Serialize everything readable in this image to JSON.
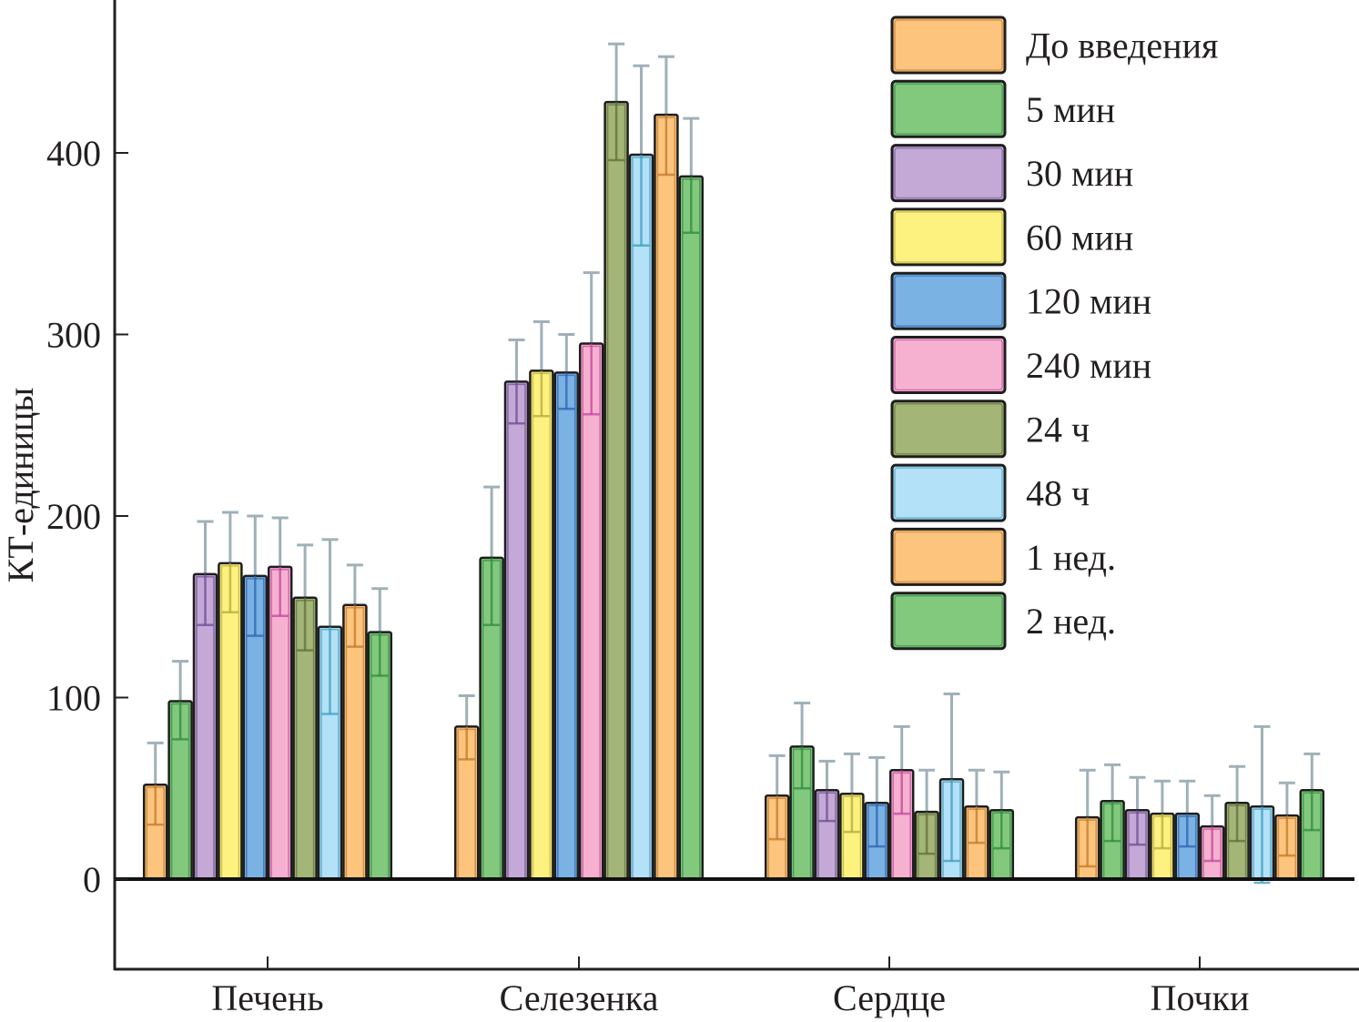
{
  "chart_data": {
    "type": "bar",
    "title": "",
    "xlabel": "",
    "ylabel": "КТ-единицы",
    "ylim": [
      -50,
      480
    ],
    "yticks": [
      0,
      100,
      200,
      300,
      400
    ],
    "grid": false,
    "legend_position": "top-right",
    "categories": [
      "Печень",
      "Селезенка",
      "Сердце",
      "Почки"
    ],
    "series": [
      {
        "name": "До введения",
        "color": "#fdc47e",
        "edge": "#c07a2a",
        "values": [
          52,
          84,
          46,
          34
        ],
        "err_upper": [
          75,
          101,
          68,
          60
        ],
        "err_lower": [
          30,
          66,
          22,
          7
        ]
      },
      {
        "name": "5 мин",
        "color": "#83c97d",
        "edge": "#2e8b3e",
        "values": [
          98,
          177,
          73,
          43
        ],
        "err_upper": [
          120,
          216,
          97,
          63
        ],
        "err_lower": [
          77,
          140,
          50,
          21
        ]
      },
      {
        "name": "30 мин",
        "color": "#c4a9d6",
        "edge": "#6a4c93",
        "values": [
          168,
          274,
          49,
          38
        ],
        "err_upper": [
          197,
          297,
          65,
          56
        ],
        "err_lower": [
          140,
          251,
          32,
          19
        ]
      },
      {
        "name": "60 мин",
        "color": "#fdf280",
        "edge": "#b5a93a",
        "values": [
          174,
          280,
          47,
          36
        ],
        "err_upper": [
          202,
          307,
          69,
          54
        ],
        "err_lower": [
          147,
          255,
          26,
          17
        ]
      },
      {
        "name": "120 мин",
        "color": "#79b2e3",
        "edge": "#2e63b0",
        "values": [
          167,
          279,
          42,
          36
        ],
        "err_upper": [
          200,
          300,
          67,
          54
        ],
        "err_lower": [
          134,
          259,
          18,
          18
        ]
      },
      {
        "name": "240 мин",
        "color": "#f6b1d1",
        "edge": "#c2479a",
        "values": [
          172,
          295,
          60,
          29
        ],
        "err_upper": [
          199,
          334,
          84,
          46
        ],
        "err_lower": [
          145,
          256,
          36,
          10
        ]
      },
      {
        "name": "24 ч",
        "color": "#a3b677",
        "edge": "#5e6e3a",
        "values": [
          155,
          428,
          37,
          42
        ],
        "err_upper": [
          184,
          460,
          60,
          62
        ],
        "err_lower": [
          126,
          396,
          14,
          21
        ]
      },
      {
        "name": "48 ч",
        "color": "#b3e1f7",
        "edge": "#3c9cc0",
        "values": [
          139,
          399,
          55,
          40
        ],
        "err_upper": [
          187,
          448,
          102,
          84
        ],
        "err_lower": [
          91,
          349,
          10,
          -2
        ]
      },
      {
        "name": "1 нед.",
        "color": "#fdc47e",
        "edge": "#c07a2a",
        "values": [
          151,
          421,
          40,
          35
        ],
        "err_upper": [
          173,
          453,
          60,
          53
        ],
        "err_lower": [
          128,
          388,
          20,
          13
        ]
      },
      {
        "name": "2 нед.",
        "color": "#83c97d",
        "edge": "#2e8b3e",
        "values": [
          136,
          387,
          38,
          49
        ],
        "err_upper": [
          160,
          419,
          59,
          69
        ],
        "err_lower": [
          112,
          356,
          17,
          27
        ]
      }
    ]
  }
}
